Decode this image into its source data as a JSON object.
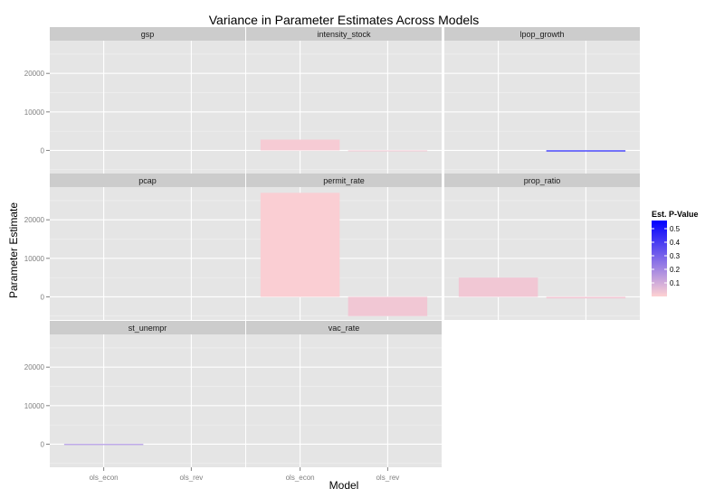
{
  "chart_data": {
    "type": "bar",
    "title": "Variance in Parameter Estimates Across Models",
    "xlabel": "Model",
    "ylabel": "Parameter Estimate",
    "categories": [
      "ols_econ",
      "ols_rev"
    ],
    "yticks": [
      0,
      10000,
      20000
    ],
    "ylim": [
      -6000,
      28500
    ],
    "grid": true,
    "facet_layout": "3 columns x 3 rows",
    "legend": {
      "title": "Est. P-Value",
      "position": "right",
      "ticks": [
        0.5,
        0.4,
        0.3,
        0.2,
        0.1
      ],
      "range": [
        0.0,
        0.56
      ],
      "colors": {
        "low": "#ffd2d2",
        "high": "#0000ff"
      }
    },
    "facets": [
      {
        "name": "gsp",
        "bars": [
          {
            "category": "ols_econ",
            "value": 0,
            "pvalue": null
          },
          {
            "category": "ols_rev",
            "value": 0,
            "pvalue": null
          }
        ]
      },
      {
        "name": "intensity_stock",
        "bars": [
          {
            "category": "ols_econ",
            "value": 2800,
            "pvalue": 0.02
          },
          {
            "category": "ols_rev",
            "value": -250,
            "pvalue": 0.03
          }
        ]
      },
      {
        "name": "lpop_growth",
        "bars": [
          {
            "category": "ols_econ",
            "value": 0,
            "pvalue": null
          },
          {
            "category": "ols_rev",
            "value": -250,
            "pvalue": 0.55
          }
        ]
      },
      {
        "name": "pcap",
        "bars": [
          {
            "category": "ols_econ",
            "value": 0,
            "pvalue": null
          },
          {
            "category": "ols_rev",
            "value": 0,
            "pvalue": null
          }
        ]
      },
      {
        "name": "permit_rate",
        "bars": [
          {
            "category": "ols_econ",
            "value": 27000,
            "pvalue": 0.01
          },
          {
            "category": "ols_rev",
            "value": -5000,
            "pvalue": 0.03
          }
        ]
      },
      {
        "name": "prop_ratio",
        "bars": [
          {
            "category": "ols_econ",
            "value": 5000,
            "pvalue": 0.03
          },
          {
            "category": "ols_rev",
            "value": -400,
            "pvalue": 0.03
          }
        ]
      },
      {
        "name": "st_unempr",
        "bars": [
          {
            "category": "ols_econ",
            "value": 30,
            "pvalue": 0.2
          },
          {
            "category": "ols_rev",
            "value": 0,
            "pvalue": null
          }
        ]
      },
      {
        "name": "vac_rate",
        "bars": [
          {
            "category": "ols_econ",
            "value": 0,
            "pvalue": null
          },
          {
            "category": "ols_rev",
            "value": 0,
            "pvalue": null
          }
        ]
      }
    ]
  }
}
